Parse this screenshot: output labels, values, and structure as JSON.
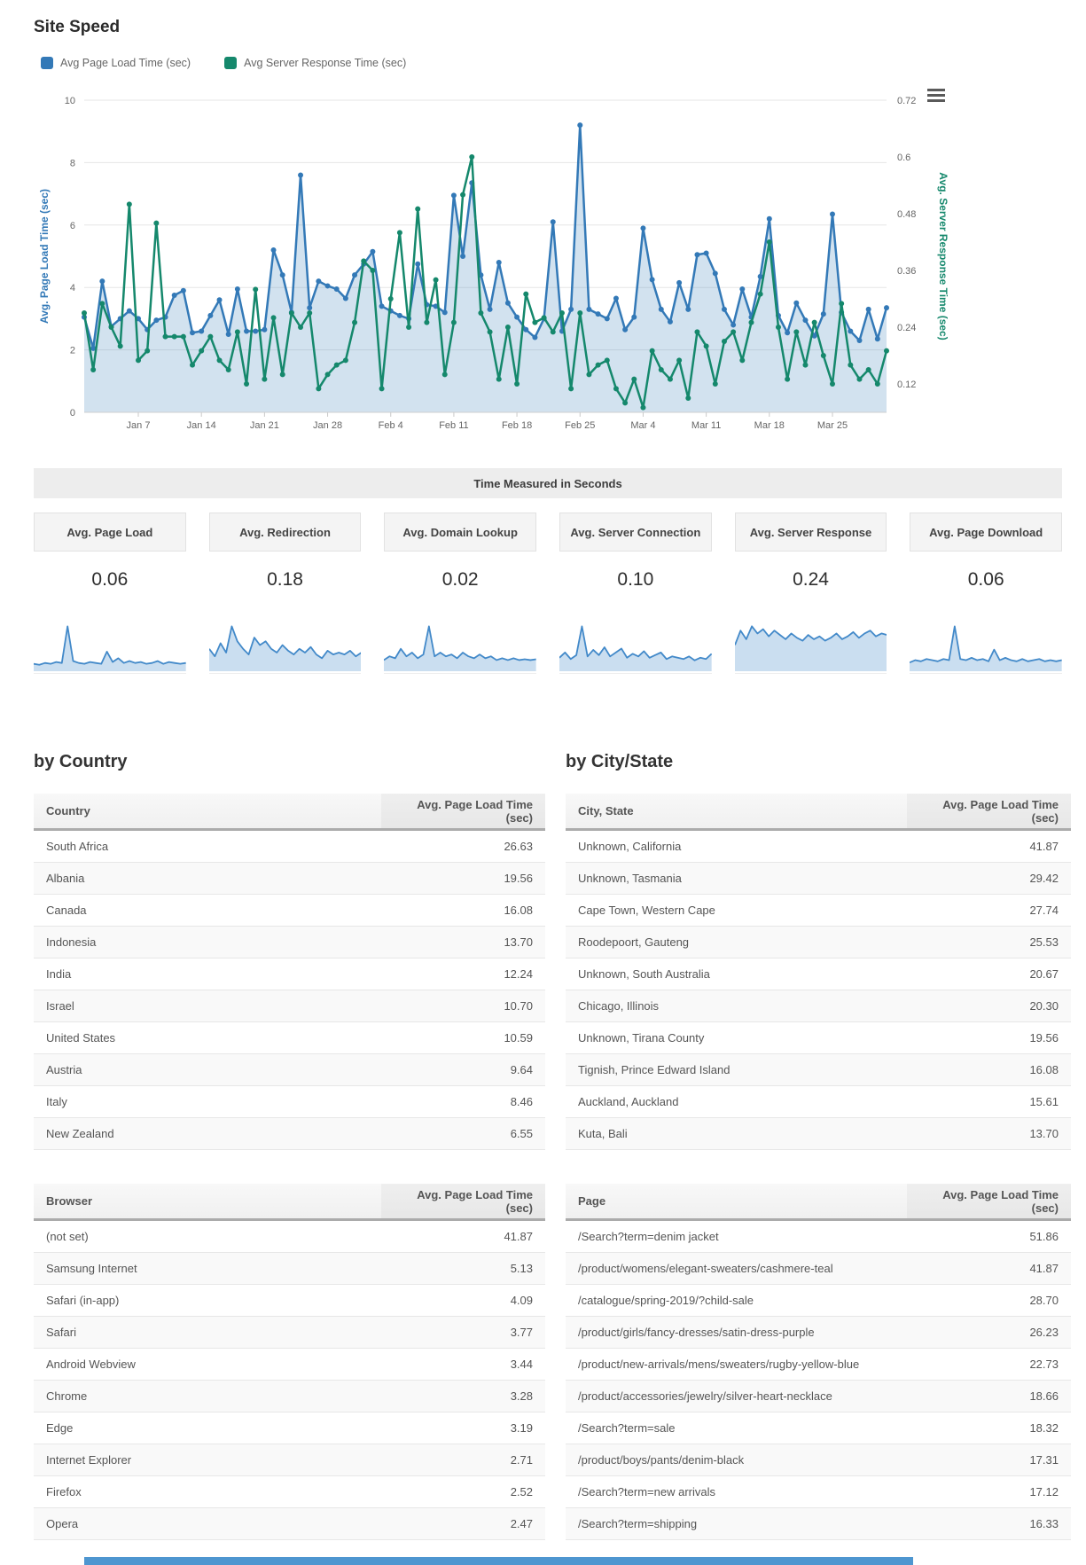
{
  "page": {
    "title": "Site Speed"
  },
  "banner": {
    "text": "Time Measured in Seconds"
  },
  "icons": {
    "menu": "hamburger-menu"
  },
  "colors": {
    "page_load_blue": "#3379b7",
    "page_load_fill": "rgba(51,121,183,0.22)",
    "server_green": "#15886c",
    "spark_blue": "#4289c9",
    "spark_fill": "rgba(66,137,201,0.28)",
    "grid": "#e6e6e6",
    "axis_text": "#666666",
    "bottom_strip_blue": "#4e96d0"
  },
  "chart_data": {
    "type": "line",
    "title": "Site Speed",
    "days": 90,
    "grid": "horizontal",
    "legend_position": "top-left",
    "x_tick_labels": [
      "Jan 7",
      "Jan 14",
      "Jan 21",
      "Jan 28",
      "Feb 4",
      "Feb 11",
      "Feb 18",
      "Feb 25",
      "Mar 4",
      "Mar 11",
      "Mar 18",
      "Mar 25"
    ],
    "x_tick_day_indices": [
      6,
      13,
      20,
      27,
      34,
      41,
      48,
      55,
      62,
      69,
      76,
      83
    ],
    "left_axis": {
      "label": "Avg. Page Load Time (sec)",
      "range": [
        0,
        10
      ],
      "ticks": [
        0,
        2,
        4,
        6,
        8,
        10
      ]
    },
    "right_axis": {
      "label": "Avg. Server Response Time (sec)",
      "range": [
        0.06,
        0.72
      ],
      "ticks": [
        0.12,
        0.24,
        0.36,
        0.48,
        0.6,
        0.72
      ]
    },
    "series": [
      {
        "name": "Avg Page Load Time (sec)",
        "axis": "left",
        "color": "#3379b7",
        "fill": true,
        "values": [
          3.05,
          2.05,
          4.2,
          2.75,
          3.0,
          3.25,
          3.0,
          2.65,
          2.95,
          3.05,
          3.75,
          3.9,
          2.55,
          2.6,
          3.1,
          3.6,
          2.5,
          3.95,
          2.6,
          2.6,
          2.65,
          5.2,
          4.4,
          3.2,
          7.6,
          3.35,
          4.2,
          4.05,
          3.95,
          3.65,
          4.4,
          4.75,
          5.15,
          3.4,
          3.25,
          3.1,
          3.0,
          4.75,
          3.45,
          3.4,
          3.2,
          6.95,
          5.0,
          7.35,
          4.4,
          3.3,
          4.8,
          3.5,
          3.05,
          2.65,
          2.4,
          3.0,
          6.1,
          2.6,
          3.3,
          9.2,
          3.3,
          3.15,
          3.0,
          3.65,
          2.65,
          3.05,
          5.9,
          4.25,
          3.3,
          2.9,
          4.15,
          3.3,
          5.05,
          5.1,
          4.45,
          3.3,
          2.8,
          3.95,
          3.05,
          4.35,
          6.2,
          3.1,
          2.55,
          3.5,
          2.95,
          2.45,
          3.15,
          6.35,
          3.2,
          2.6,
          2.3,
          3.3,
          2.35,
          3.35
        ]
      },
      {
        "name": "Avg Server Response Time (sec)",
        "axis": "right",
        "color": "#15886c",
        "fill": false,
        "values": [
          0.27,
          0.15,
          0.29,
          0.24,
          0.2,
          0.5,
          0.17,
          0.19,
          0.46,
          0.22,
          0.22,
          0.22,
          0.16,
          0.19,
          0.22,
          0.17,
          0.15,
          0.23,
          0.12,
          0.32,
          0.13,
          0.26,
          0.14,
          0.27,
          0.24,
          0.27,
          0.11,
          0.14,
          0.16,
          0.17,
          0.25,
          0.38,
          0.36,
          0.11,
          0.3,
          0.44,
          0.24,
          0.49,
          0.25,
          0.34,
          0.14,
          0.25,
          0.52,
          0.6,
          0.27,
          0.23,
          0.13,
          0.24,
          0.12,
          0.31,
          0.25,
          0.26,
          0.23,
          0.27,
          0.11,
          0.27,
          0.14,
          0.16,
          0.17,
          0.11,
          0.08,
          0.13,
          0.07,
          0.19,
          0.15,
          0.13,
          0.17,
          0.09,
          0.23,
          0.2,
          0.12,
          0.21,
          0.23,
          0.17,
          0.25,
          0.31,
          0.42,
          0.24,
          0.13,
          0.23,
          0.16,
          0.25,
          0.18,
          0.12,
          0.29,
          0.16,
          0.13,
          0.15,
          0.12,
          0.19
        ]
      }
    ]
  },
  "cards": [
    {
      "title": "Avg. Page Load",
      "value": "0.06",
      "spark": [
        0.6,
        0.5,
        0.7,
        0.6,
        0.8,
        0.7,
        4.6,
        0.9,
        0.7,
        0.6,
        0.8,
        0.7,
        0.6,
        1.9,
        0.8,
        1.2,
        0.7,
        0.9,
        0.7,
        0.8,
        0.6,
        0.7,
        0.9,
        0.6,
        0.8,
        0.7,
        0.6,
        0.7
      ]
    },
    {
      "title": "Avg. Redirection",
      "value": "0.18",
      "spark": [
        1.1,
        0.7,
        1.4,
        0.9,
        2.3,
        1.5,
        1.1,
        0.8,
        1.7,
        1.3,
        1.5,
        1.1,
        0.9,
        1.3,
        1.0,
        0.8,
        1.1,
        0.9,
        1.2,
        0.8,
        0.6,
        1.0,
        0.8,
        0.9,
        0.8,
        1.0,
        0.7,
        0.9
      ]
    },
    {
      "title": "Avg. Domain Lookup",
      "value": "0.02",
      "spark": [
        0.5,
        0.7,
        0.6,
        1.1,
        0.7,
        0.9,
        0.6,
        0.8,
        2.3,
        0.7,
        0.9,
        0.7,
        0.8,
        0.6,
        0.9,
        0.7,
        0.6,
        0.8,
        0.6,
        0.7,
        0.5,
        0.6,
        0.5,
        0.6,
        0.5,
        0.55,
        0.5,
        0.55
      ]
    },
    {
      "title": "Avg. Server Connection",
      "value": "0.10",
      "spark": [
        0.9,
        1.3,
        0.8,
        1.1,
        3.3,
        1.0,
        1.5,
        1.1,
        1.7,
        1.0,
        1.3,
        1.6,
        0.9,
        1.2,
        1.0,
        1.4,
        0.9,
        1.1,
        1.3,
        0.8,
        1.0,
        0.9,
        0.8,
        1.0,
        0.7,
        0.9,
        0.8,
        1.2
      ]
    },
    {
      "title": "Avg. Server Response",
      "value": "0.24",
      "spark": [
        1.7,
        2.7,
        2.1,
        3.0,
        2.5,
        2.8,
        2.3,
        2.7,
        2.4,
        2.1,
        2.5,
        2.2,
        2.0,
        2.4,
        2.1,
        2.3,
        2.0,
        2.2,
        2.5,
        2.1,
        2.3,
        2.6,
        2.2,
        2.5,
        2.7,
        2.3,
        2.5,
        2.4
      ]
    },
    {
      "title": "Avg. Page Download",
      "value": "0.06",
      "spark": [
        0.6,
        0.8,
        0.7,
        0.9,
        0.8,
        0.7,
        0.9,
        0.8,
        3.7,
        0.9,
        0.8,
        1.0,
        0.8,
        0.9,
        0.7,
        1.7,
        0.8,
        1.0,
        0.8,
        0.7,
        0.9,
        0.7,
        0.8,
        0.9,
        0.7,
        0.8,
        0.7,
        0.8
      ]
    }
  ],
  "sections": {
    "country_title": "by Country",
    "city_title": "by City/State"
  },
  "tables": {
    "country": {
      "headers": [
        "Country",
        "Avg. Page Load Time (sec)"
      ],
      "rows": [
        [
          "South Africa",
          "26.63"
        ],
        [
          "Albania",
          "19.56"
        ],
        [
          "Canada",
          "16.08"
        ],
        [
          "Indonesia",
          "13.70"
        ],
        [
          "India",
          "12.24"
        ],
        [
          "Israel",
          "10.70"
        ],
        [
          "United States",
          "10.59"
        ],
        [
          "Austria",
          "9.64"
        ],
        [
          "Italy",
          "8.46"
        ],
        [
          "New Zealand",
          "6.55"
        ]
      ]
    },
    "city": {
      "headers": [
        "City, State",
        "Avg. Page Load Time (sec)"
      ],
      "rows": [
        [
          "Unknown, California",
          "41.87"
        ],
        [
          "Unknown, Tasmania",
          "29.42"
        ],
        [
          "Cape Town, Western Cape",
          "27.74"
        ],
        [
          "Roodepoort, Gauteng",
          "25.53"
        ],
        [
          "Unknown, South Australia",
          "20.67"
        ],
        [
          "Chicago, Illinois",
          "20.30"
        ],
        [
          "Unknown, Tirana County",
          "19.56"
        ],
        [
          "Tignish, Prince Edward Island",
          "16.08"
        ],
        [
          "Auckland, Auckland",
          "15.61"
        ],
        [
          "Kuta, Bali",
          "13.70"
        ]
      ]
    },
    "browser": {
      "headers": [
        "Browser",
        "Avg. Page Load Time (sec)"
      ],
      "rows": [
        [
          "(not set)",
          "41.87"
        ],
        [
          "Samsung Internet",
          "5.13"
        ],
        [
          "Safari (in-app)",
          "4.09"
        ],
        [
          "Safari",
          "3.77"
        ],
        [
          "Android Webview",
          "3.44"
        ],
        [
          "Chrome",
          "3.28"
        ],
        [
          "Edge",
          "3.19"
        ],
        [
          "Internet Explorer",
          "2.71"
        ],
        [
          "Firefox",
          "2.52"
        ],
        [
          "Opera",
          "2.47"
        ]
      ]
    },
    "page": {
      "headers": [
        "Page",
        "Avg. Page Load Time (sec)"
      ],
      "rows": [
        [
          "/Search?term=denim jacket",
          "51.86"
        ],
        [
          "/product/womens/elegant-sweaters/cashmere-teal",
          "41.87"
        ],
        [
          "/catalogue/spring-2019/?child-sale",
          "28.70"
        ],
        [
          "/product/girls/fancy-dresses/satin-dress-purple",
          "26.23"
        ],
        [
          "/product/new-arrivals/mens/sweaters/rugby-yellow-blue",
          "22.73"
        ],
        [
          "/product/accessories/jewelry/silver-heart-necklace",
          "18.66"
        ],
        [
          "/Search?term=sale",
          "18.32"
        ],
        [
          "/product/boys/pants/denim-black",
          "17.31"
        ],
        [
          "/Search?term=new arrivals",
          "17.12"
        ],
        [
          "/Search?term=shipping",
          "16.33"
        ]
      ]
    }
  }
}
